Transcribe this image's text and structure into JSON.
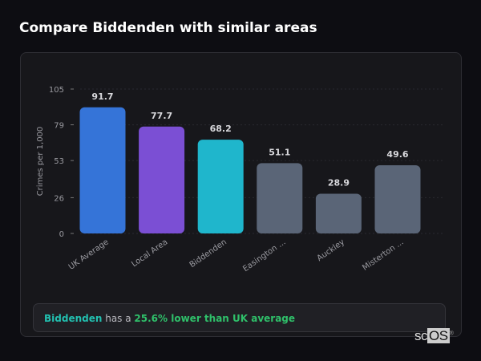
{
  "title": "Compare Biddenden with similar areas",
  "chart_data": {
    "type": "bar",
    "ylabel": "Crimes per 1,000",
    "ylim": [
      0,
      105
    ],
    "yticks": [
      0,
      26,
      53,
      79,
      105
    ],
    "categories": [
      "UK Average",
      "Local Area",
      "Biddenden",
      "Easington ...",
      "Auckley",
      "Misterton ..."
    ],
    "values": [
      91.7,
      77.7,
      68.2,
      51.1,
      28.9,
      49.6
    ],
    "value_labels": [
      "91.7",
      "77.7",
      "68.2",
      "51.1",
      "28.9",
      "49.6"
    ],
    "colors": [
      "#3574d8",
      "#7b4fd4",
      "#1fb6cc",
      "#5a6577",
      "#5a6577",
      "#5a6577"
    ],
    "grid": true
  },
  "summary": {
    "place": "Biddenden",
    "middle": " has a ",
    "highlight": "25.6% lower than UK average"
  },
  "logo": {
    "text_a": "sc",
    "text_b": "OS",
    "mark": "®"
  }
}
